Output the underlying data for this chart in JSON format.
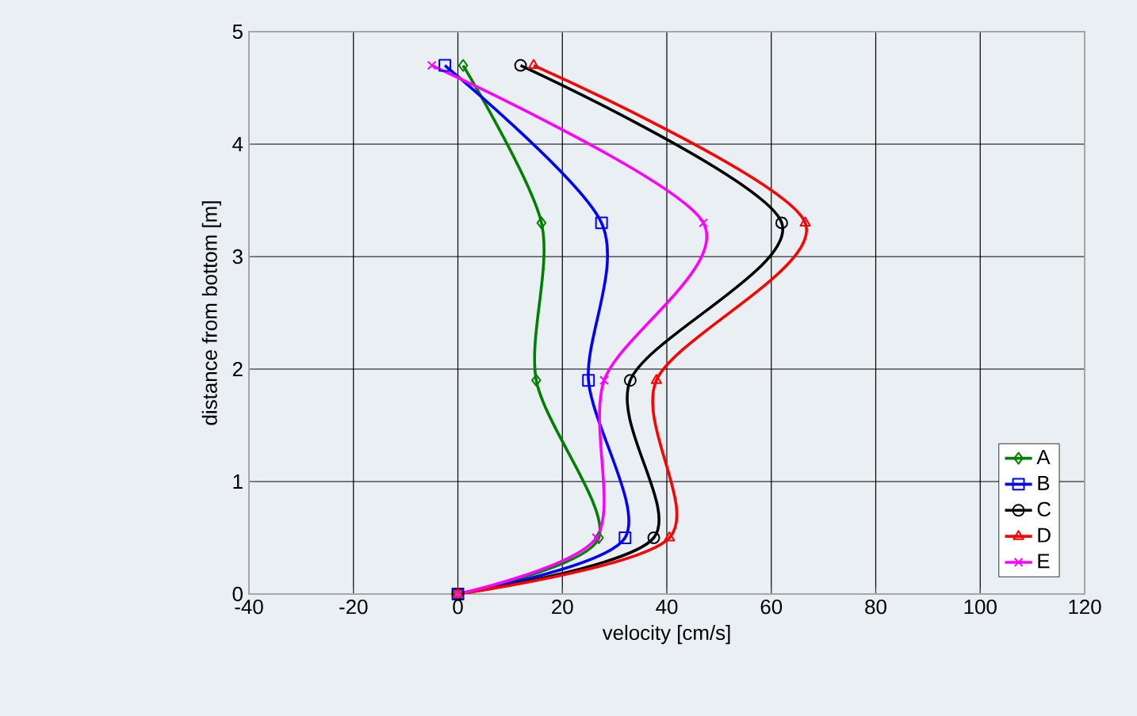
{
  "chart_data": {
    "type": "line",
    "xlabel": "velocity [cm/s]",
    "ylabel": "distance from bottom [m]",
    "xlim": [
      -40,
      120
    ],
    "xticks": [
      -40,
      -20,
      0,
      20,
      40,
      60,
      80,
      100,
      120
    ],
    "ylim": [
      0,
      5
    ],
    "yticks": [
      0,
      1,
      2,
      3,
      4,
      5
    ],
    "grid": true,
    "legend": "bottom right",
    "line_style": "solid",
    "series": [
      {
        "name": "A",
        "color": "#008000",
        "marker": "diamond",
        "x": [
          0,
          27,
          15,
          16,
          1
        ],
        "values": [
          0,
          0.5,
          1.9,
          3.3,
          4.7
        ]
      },
      {
        "name": "B",
        "color": "#0000ff",
        "marker": "square",
        "x": [
          0,
          32,
          25,
          27.5,
          -2.5
        ],
        "values": [
          0,
          0.5,
          1.9,
          3.3,
          4.7
        ]
      },
      {
        "name": "C",
        "color": "#000000",
        "marker": "circle",
        "x": [
          0,
          37.5,
          33,
          62,
          12
        ],
        "values": [
          0,
          0.5,
          1.9,
          3.3,
          4.7
        ]
      },
      {
        "name": "D",
        "color": "#ff0000",
        "marker": "triangle",
        "x": [
          0,
          40.5,
          38,
          66.5,
          14.5
        ],
        "values": [
          0,
          0.5,
          1.9,
          3.3,
          4.7
        ]
      },
      {
        "name": "E",
        "color": "#ff00ff",
        "marker": "cross",
        "x": [
          0,
          26.5,
          28,
          47,
          -5
        ],
        "values": [
          0,
          0.5,
          1.9,
          3.3,
          4.7
        ]
      }
    ]
  }
}
